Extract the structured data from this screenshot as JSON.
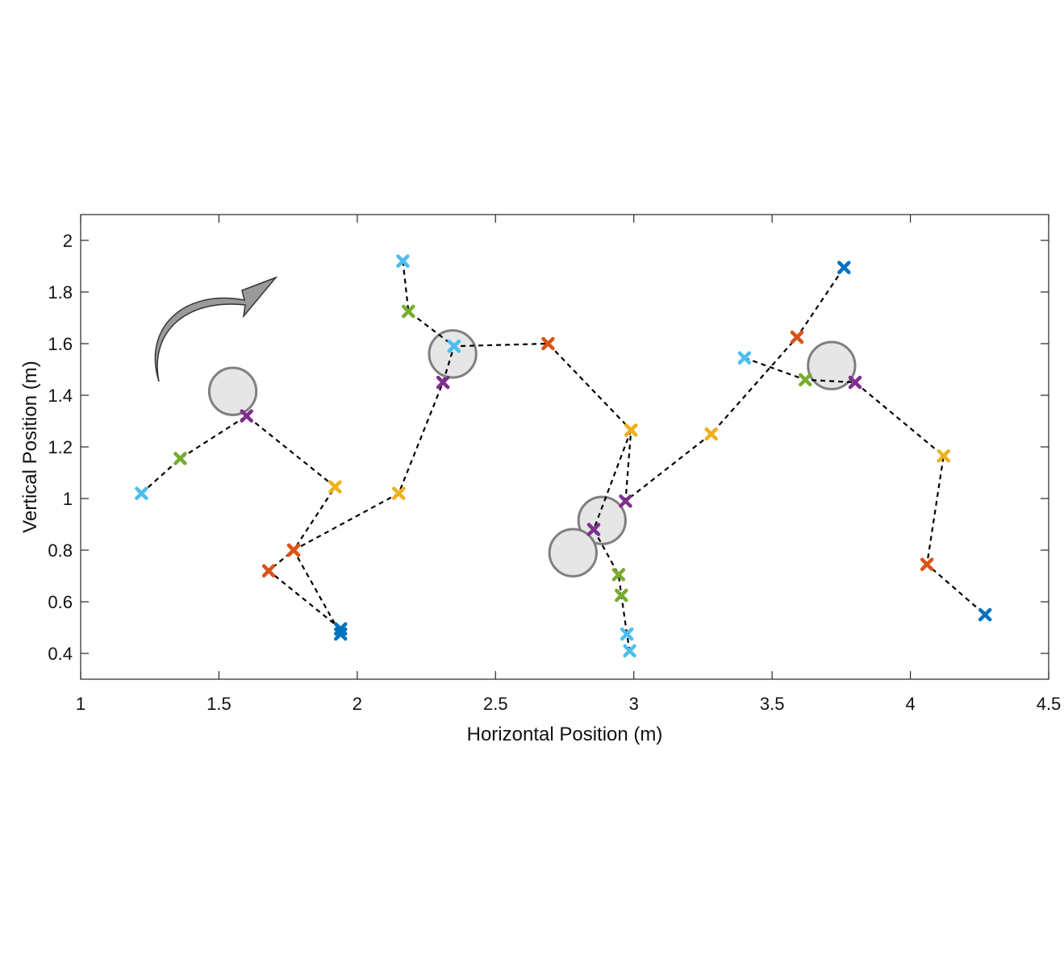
{
  "chart_data": {
    "type": "scatter",
    "title": "",
    "xlabel": "Horizontal Position (m)",
    "ylabel": "Vertical Position (m)",
    "xlim": [
      1,
      4.5
    ],
    "ylim": [
      0.3,
      2.1
    ],
    "xticks": [
      1,
      1.5,
      2,
      2.5,
      3,
      3.5,
      4,
      4.5
    ],
    "xtick_labels": [
      "1",
      "1.5",
      "2",
      "2.5",
      "3",
      "3.5",
      "4",
      "4.5"
    ],
    "yticks": [
      0.4,
      0.6,
      0.8,
      1.0,
      1.2,
      1.4,
      1.6,
      1.8,
      2.0
    ],
    "ytick_labels": [
      "0.4",
      "0.6",
      "0.8",
      "1",
      "1.2",
      "1.4",
      "1.6",
      "1.8",
      "2"
    ],
    "grid": false,
    "marker_colors": {
      "light_blue": "#4DBEEE",
      "green": "#77AC30",
      "purple": "#7E2F8E",
      "yellow": "#EDB120",
      "orange": "#D95319",
      "dark_blue": "#0072BD"
    },
    "circle_fill": "#e6e6e6",
    "circle_stroke": "#7f7f7f",
    "arrow_fill": "#9a9a9a",
    "circles": [
      {
        "x": 1.55,
        "y": 1.415,
        "r": 0.085
      },
      {
        "x": 2.345,
        "y": 1.56,
        "r": 0.085
      },
      {
        "x": 2.885,
        "y": 0.915,
        "r": 0.085
      },
      {
        "x": 2.78,
        "y": 0.79,
        "r": 0.085
      },
      {
        "x": 3.715,
        "y": 1.515,
        "r": 0.085
      }
    ],
    "series": [
      {
        "color": "light_blue",
        "x": [
          1.22,
          1.36,
          1.6,
          1.92,
          1.77,
          1.94
        ],
        "y": [
          1.02,
          1.155,
          1.32,
          1.045,
          0.8,
          0.475
        ],
        "colors": [
          "light_blue",
          "green",
          "purple",
          "yellow",
          "orange",
          "dark_blue"
        ]
      },
      {
        "color": "orange",
        "x": [
          1.94,
          1.68,
          1.77,
          2.15,
          2.31,
          2.35,
          2.69,
          2.99,
          2.97,
          3.28,
          3.59,
          3.76
        ],
        "y": [
          0.495,
          0.72,
          0.8,
          1.02,
          1.45,
          1.59,
          1.6,
          1.265,
          0.99,
          1.25,
          1.625,
          1.895
        ],
        "colors": [
          "dark_blue",
          "orange",
          "orange",
          "yellow",
          "purple",
          "light_blue",
          "orange",
          "yellow",
          "purple",
          "yellow",
          "orange",
          "dark_blue"
        ]
      },
      {
        "color": "light_blue",
        "x": [
          2.165,
          2.185,
          2.35
        ],
        "y": [
          1.92,
          1.725,
          1.59
        ],
        "colors": [
          "light_blue",
          "green",
          "light_blue"
        ]
      },
      {
        "color": "purple",
        "x": [
          2.99,
          2.855,
          2.945,
          2.955,
          2.975,
          2.985
        ],
        "y": [
          1.265,
          0.88,
          0.705,
          0.625,
          0.475,
          0.41
        ],
        "colors": [
          "yellow",
          "purple",
          "green",
          "green",
          "light_blue",
          "light_blue"
        ]
      },
      {
        "color": "light_blue",
        "x": [
          3.4,
          3.62,
          3.8,
          4.12,
          4.06,
          4.27
        ],
        "y": [
          1.545,
          1.46,
          1.45,
          1.165,
          0.745,
          0.55
        ],
        "colors": [
          "light_blue",
          "green",
          "purple",
          "yellow",
          "orange",
          "dark_blue"
        ]
      }
    ]
  }
}
